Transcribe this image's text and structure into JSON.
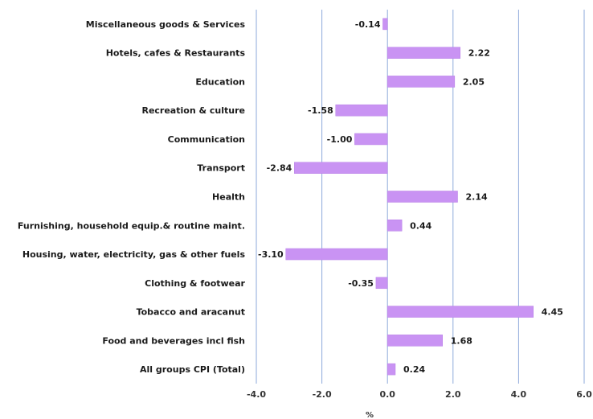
{
  "chart_data": {
    "type": "bar",
    "orientation": "horizontal",
    "categories": [
      "Miscellaneous goods & Services",
      "Hotels, cafes & Restaurants",
      "Education",
      "Recreation & culture",
      "Communication",
      "Transport",
      "Health",
      "Furnishing, household equip.& routine maint.",
      "Housing, water, electricity, gas & other fuels",
      "Clothing & footwear",
      "Tobacco and aracanut",
      "Food and beverages incl fish",
      "All groups CPI (Total)"
    ],
    "values": [
      -0.14,
      2.22,
      2.05,
      -1.58,
      -1.0,
      -2.84,
      2.14,
      0.44,
      -3.1,
      -0.35,
      4.45,
      1.68,
      0.24
    ],
    "value_labels": [
      "-0.14",
      "2.22",
      "2.05",
      "-1.58",
      "-1.00",
      "-2.84",
      "2.14",
      "0.44",
      "-3.10",
      "-0.35",
      "4.45",
      "1.68",
      "0.24"
    ],
    "xlim": [
      -4.0,
      6.0
    ],
    "xticks": [
      -4.0,
      -2.0,
      0.0,
      2.0,
      4.0,
      6.0
    ],
    "xtick_labels": [
      "-4.0",
      "-2.0",
      "0.0",
      "2.0",
      "4.0",
      "6.0"
    ],
    "xlabel": "%",
    "ylabel": "",
    "title": "",
    "grid": "vertical",
    "legend": "none",
    "bar_color": "#c993f3",
    "bar_edge_color": "#b77ee6",
    "grid_color": "#8eaadb"
  }
}
